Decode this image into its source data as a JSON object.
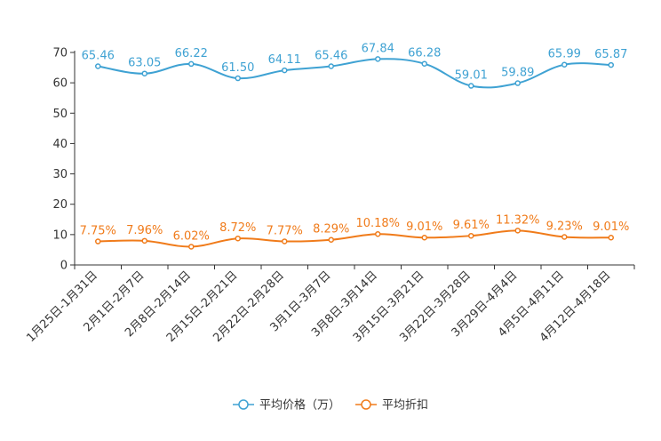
{
  "chart_data": {
    "type": "line",
    "title": "",
    "xlabel": "",
    "ylabel": "",
    "ylim": [
      0,
      70
    ],
    "yticks": [
      0,
      10,
      20,
      30,
      40,
      50,
      60,
      70
    ],
    "grid": false,
    "legend_position": "bottom-center",
    "categories": [
      "1月25日-1月31日",
      "2月1日-2月7日",
      "2月8日-2月14日",
      "2月15日-2月21日",
      "2月22日-2月28日",
      "3月1日-3月7日",
      "3月8日-3月14日",
      "3月15日-3月21日",
      "3月22日-3月28日",
      "3月29日-4月4日",
      "4月5日-4月11日",
      "4月12日-4月18日"
    ],
    "series": [
      {
        "name": "平均价格（万）",
        "color": "#3fa2d3",
        "values": [
          65.46,
          63.05,
          66.22,
          61.5,
          64.11,
          65.46,
          67.84,
          66.28,
          59.01,
          59.89,
          65.99,
          65.87
        ],
        "labels": [
          "65.46",
          "63.05",
          "66.22",
          "61.50",
          "64.11",
          "65.46",
          "67.84",
          "66.28",
          "59.01",
          "59.89",
          "65.99",
          "65.87"
        ]
      },
      {
        "name": "平均折扣",
        "color": "#f07b1a",
        "values": [
          7.75,
          7.96,
          6.02,
          8.72,
          7.77,
          8.29,
          10.18,
          9.01,
          9.61,
          11.32,
          9.23,
          9.01
        ],
        "labels": [
          "7.75%",
          "7.96%",
          "6.02%",
          "8.72%",
          "7.77%",
          "8.29%",
          "10.18%",
          "9.01%",
          "9.61%",
          "11.32%",
          "9.23%",
          "9.01%"
        ]
      }
    ]
  }
}
